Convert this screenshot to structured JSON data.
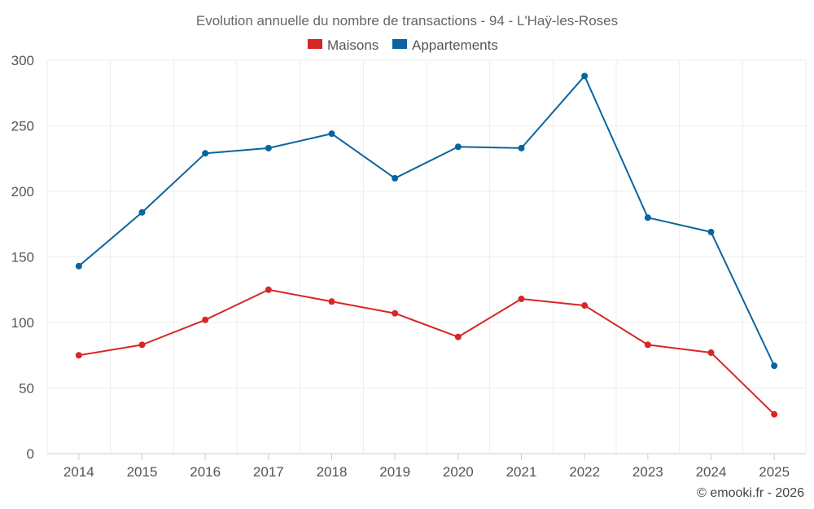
{
  "chart_data": {
    "type": "line",
    "title": "Evolution annuelle du nombre de transactions - 94 - L'Haÿ-les-Roses",
    "categories": [
      "2014",
      "2015",
      "2016",
      "2017",
      "2018",
      "2019",
      "2020",
      "2021",
      "2022",
      "2023",
      "2024",
      "2025"
    ],
    "series": [
      {
        "name": "Maisons",
        "color": "#d62728",
        "values": [
          75,
          83,
          102,
          125,
          116,
          107,
          89,
          118,
          113,
          83,
          77,
          30
        ]
      },
      {
        "name": "Appartements",
        "color": "#0a649e",
        "values": [
          143,
          184,
          229,
          233,
          244,
          210,
          234,
          233,
          288,
          180,
          169,
          67
        ]
      }
    ],
    "y_ticks": [
      "0",
      "50",
      "100",
      "150",
      "200",
      "250",
      "300"
    ],
    "ylim": [
      0,
      300
    ],
    "xlabel": "",
    "ylabel": "",
    "grid": true,
    "legend_position": "top-center",
    "credit": "© emooki.fr - 2026"
  }
}
